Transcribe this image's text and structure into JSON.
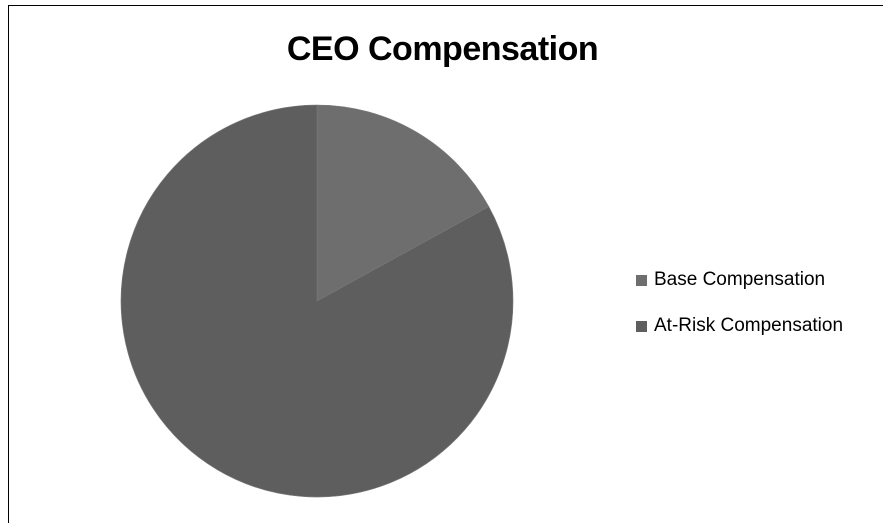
{
  "chart_data": {
    "type": "pie",
    "title": "CEO Compensation",
    "categories": [
      "Base Compensation",
      "At-Risk Compensation"
    ],
    "values": [
      17,
      83
    ],
    "colors": [
      "#6e6e6e",
      "#5e5e5e"
    ],
    "legend_position": "right"
  }
}
